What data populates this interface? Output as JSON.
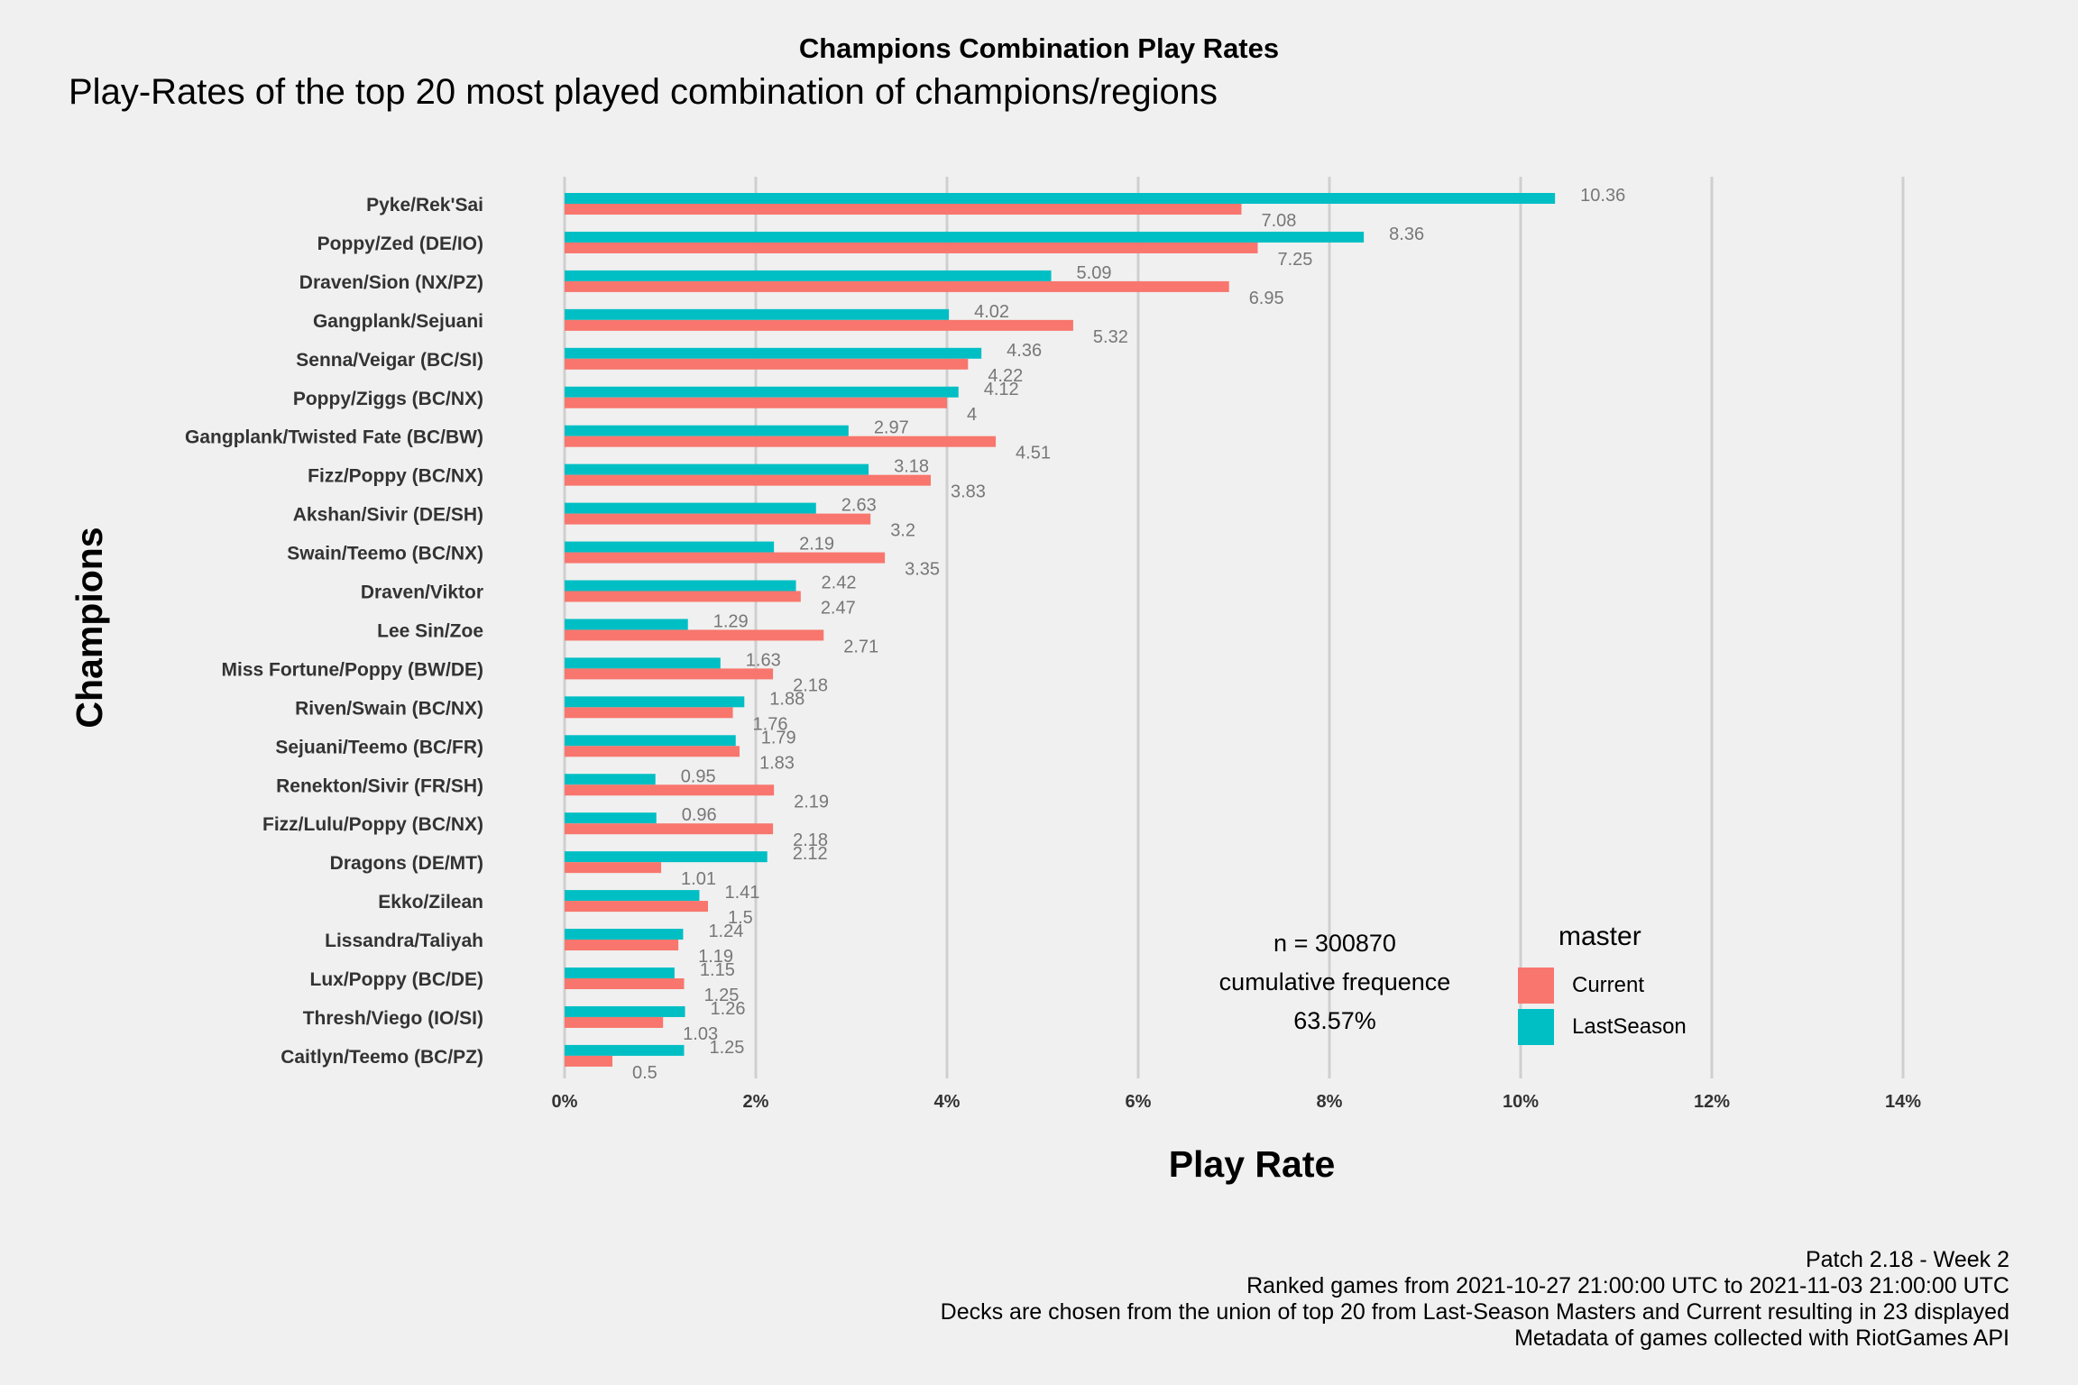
{
  "chart_data": {
    "type": "bar",
    "orientation": "horizontal",
    "title": "Champions Combination Play Rates",
    "subtitle": "Play-Rates of the top 20 most played combination of champions/regions",
    "xlabel": "Play Rate",
    "ylabel": "Champions",
    "xlim": [
      0,
      14
    ],
    "x_ticks": [
      "0%",
      "2%",
      "4%",
      "6%",
      "8%",
      "10%",
      "12%",
      "14%"
    ],
    "grid": "vertical major",
    "legend_position": "right",
    "legend_title": "master",
    "categories": [
      "Pyke/Rek'Sai",
      "Poppy/Zed (DE/IO)",
      "Draven/Sion (NX/PZ)",
      "Gangplank/Sejuani",
      "Senna/Veigar (BC/SI)",
      "Poppy/Ziggs (BC/NX)",
      "Gangplank/Twisted Fate (BC/BW)",
      "Fizz/Poppy (BC/NX)",
      "Akshan/Sivir (DE/SH)",
      "Swain/Teemo (BC/NX)",
      "Draven/Viktor",
      "Lee Sin/Zoe",
      "Miss Fortune/Poppy (BW/DE)",
      "Riven/Swain (BC/NX)",
      "Sejuani/Teemo (BC/FR)",
      "Renekton/Sivir (FR/SH)",
      "Fizz/Lulu/Poppy (BC/NX)",
      "Dragons (DE/MT)",
      "Ekko/Zilean",
      "Lissandra/Taliyah",
      "Lux/Poppy (BC/DE)",
      "Thresh/Viego (IO/SI)",
      "Caitlyn/Teemo (BC/PZ)"
    ],
    "series": [
      {
        "name": "LastSeason",
        "color": "#00bfc4",
        "values": [
          10.36,
          8.36,
          5.09,
          4.02,
          4.36,
          4.12,
          2.97,
          3.18,
          2.63,
          2.19,
          2.42,
          1.29,
          1.63,
          1.88,
          1.79,
          0.95,
          0.96,
          2.12,
          1.41,
          1.24,
          1.15,
          1.26,
          1.25
        ]
      },
      {
        "name": "Current",
        "color": "#f8766d",
        "values": [
          7.08,
          7.25,
          6.95,
          5.32,
          4.22,
          4,
          4.51,
          3.83,
          3.2,
          3.35,
          2.47,
          2.71,
          2.18,
          1.76,
          1.83,
          2.19,
          2.18,
          1.01,
          1.5,
          1.19,
          1.25,
          1.03,
          0.5
        ]
      }
    ]
  },
  "annotation": {
    "line1": "n = 300870",
    "line2": "cumulative frequence",
    "line3": "63.57%"
  },
  "legend": {
    "title": "master",
    "items": [
      {
        "label": "Current",
        "color": "#f8766d"
      },
      {
        "label": "LastSeason",
        "color": "#00bfc4"
      }
    ]
  },
  "caption": {
    "line1": "Patch 2.18 - Week 2",
    "line2": "Ranked games from 2021-10-27 21:00:00 UTC to 2021-11-03 21:00:00 UTC",
    "line3": "Decks are chosen from the union of top 20 from Last-Season Masters and Current resulting in 23 displayed",
    "line4": "Metadata of games collected with RiotGames API"
  }
}
